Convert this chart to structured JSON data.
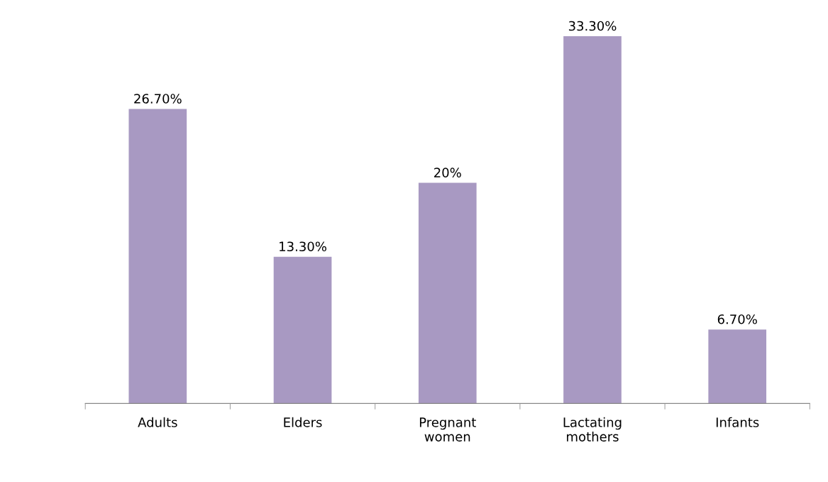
{
  "chart_data": {
    "type": "bar",
    "categories": [
      "Adults",
      "Elders",
      "Pregnant\nwomen",
      "Lactating\nmothers",
      "Infants"
    ],
    "values": [
      26.7,
      13.3,
      20,
      33.3,
      6.7
    ],
    "value_labels": [
      "26.70%",
      "13.30%",
      "20%",
      "33.30%",
      "6.70%"
    ],
    "color": "#a899c2",
    "grid": false,
    "legend": false
  }
}
